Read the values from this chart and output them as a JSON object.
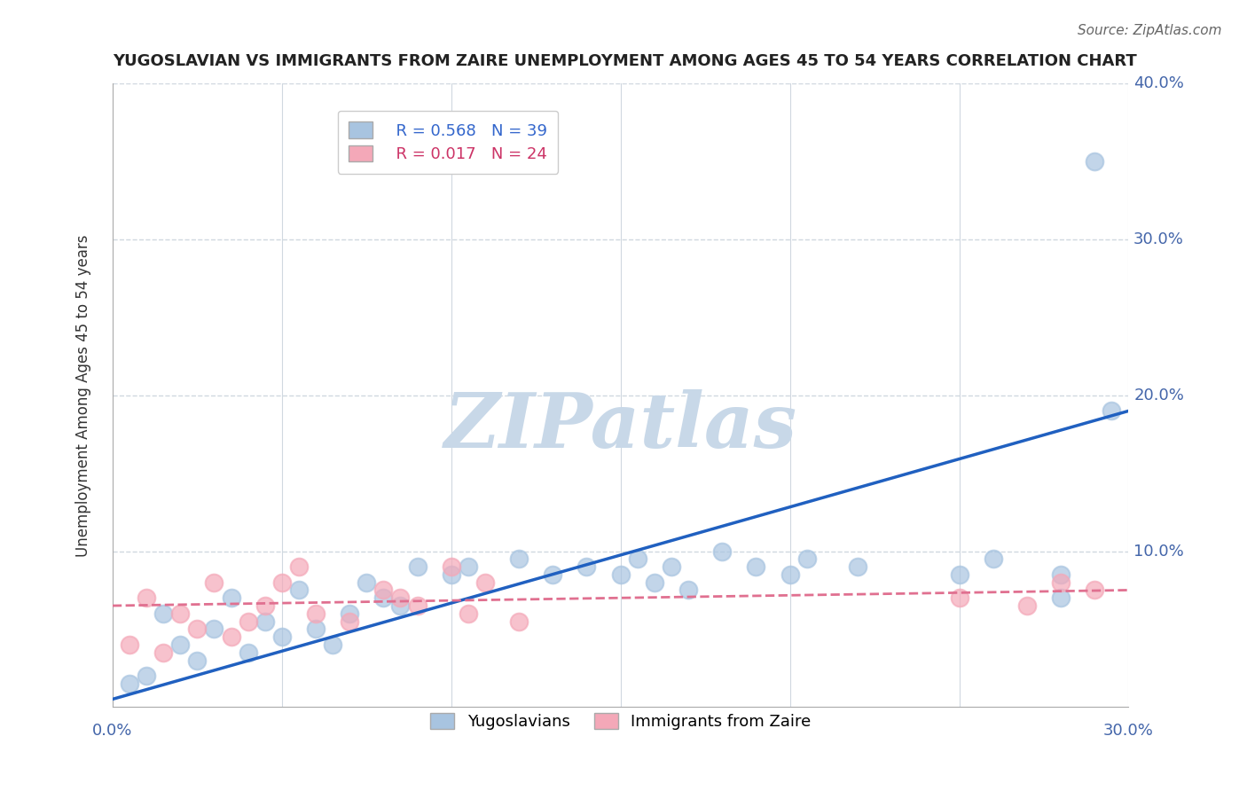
{
  "title": "YUGOSLAVIAN VS IMMIGRANTS FROM ZAIRE UNEMPLOYMENT AMONG AGES 45 TO 54 YEARS CORRELATION CHART",
  "source": "Source: ZipAtlas.com",
  "ylabel": "Unemployment Among Ages 45 to 54 years",
  "xlim": [
    0.0,
    0.3
  ],
  "ylim": [
    0.0,
    0.4
  ],
  "xticks": [
    0.0,
    0.05,
    0.1,
    0.15,
    0.2,
    0.25,
    0.3
  ],
  "yticks": [
    0.0,
    0.1,
    0.2,
    0.3,
    0.4
  ],
  "blue_R": 0.568,
  "blue_N": 39,
  "pink_R": 0.017,
  "pink_N": 24,
  "blue_color": "#a8c4e0",
  "pink_color": "#f4a8b8",
  "blue_line_color": "#2060c0",
  "pink_line_color": "#e07090",
  "blue_scatter_x": [
    0.01,
    0.02,
    0.015,
    0.025,
    0.03,
    0.005,
    0.035,
    0.04,
    0.045,
    0.05,
    0.055,
    0.06,
    0.065,
    0.07,
    0.075,
    0.08,
    0.085,
    0.09,
    0.1,
    0.105,
    0.12,
    0.13,
    0.14,
    0.15,
    0.155,
    0.16,
    0.165,
    0.17,
    0.18,
    0.19,
    0.2,
    0.205,
    0.22,
    0.25,
    0.26,
    0.28,
    0.28,
    0.29,
    0.295
  ],
  "blue_scatter_y": [
    0.02,
    0.04,
    0.06,
    0.03,
    0.05,
    0.015,
    0.07,
    0.035,
    0.055,
    0.045,
    0.075,
    0.05,
    0.04,
    0.06,
    0.08,
    0.07,
    0.065,
    0.09,
    0.085,
    0.09,
    0.095,
    0.085,
    0.09,
    0.085,
    0.095,
    0.08,
    0.09,
    0.075,
    0.1,
    0.09,
    0.085,
    0.095,
    0.09,
    0.085,
    0.095,
    0.07,
    0.085,
    0.35,
    0.19
  ],
  "pink_scatter_x": [
    0.005,
    0.01,
    0.015,
    0.02,
    0.025,
    0.03,
    0.035,
    0.04,
    0.045,
    0.05,
    0.055,
    0.06,
    0.07,
    0.08,
    0.085,
    0.09,
    0.1,
    0.105,
    0.11,
    0.12,
    0.25,
    0.27,
    0.28,
    0.29
  ],
  "pink_scatter_y": [
    0.04,
    0.07,
    0.035,
    0.06,
    0.05,
    0.08,
    0.045,
    0.055,
    0.065,
    0.08,
    0.09,
    0.06,
    0.055,
    0.075,
    0.07,
    0.065,
    0.09,
    0.06,
    0.08,
    0.055,
    0.07,
    0.065,
    0.08,
    0.075
  ],
  "blue_line_x": [
    0.0,
    0.3
  ],
  "blue_line_y": [
    0.005,
    0.19
  ],
  "pink_line_x": [
    0.0,
    0.3
  ],
  "pink_line_y": [
    0.065,
    0.075
  ],
  "watermark": "ZIPatlas",
  "watermark_color": "#c8d8e8",
  "background_color": "#ffffff",
  "grid_color": "#d0d8e0"
}
